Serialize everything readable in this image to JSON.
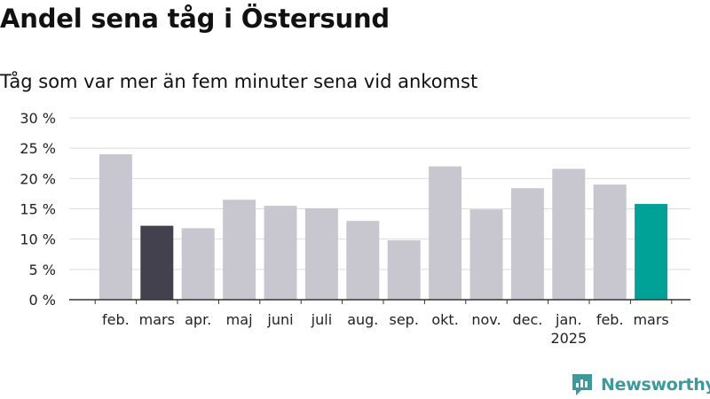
{
  "title": "Andel sena tåg i Östersund",
  "subtitle": "Tåg som var mer än fem minuter sena vid ankomst",
  "brand": "Newsworthy",
  "colors": {
    "default_bar": "#c8c7d0",
    "highlight_prev_bar": "#42414d",
    "highlight_current_bar": "#00a196",
    "grid": "#dddddd",
    "axis": "#333333",
    "brand": "#3b9b9c"
  },
  "chart_data": {
    "type": "bar",
    "categories": [
      "feb.",
      "mars",
      "apr.",
      "maj",
      "juni",
      "juli",
      "aug.",
      "sep.",
      "okt.",
      "nov.",
      "dec.",
      "jan. 2025",
      "feb.",
      "mars"
    ],
    "values": [
      24.0,
      12.2,
      11.8,
      16.5,
      15.5,
      15.1,
      13.0,
      9.8,
      22.0,
      14.9,
      18.4,
      21.6,
      19.0,
      15.8
    ],
    "bar_colors": [
      "default",
      "prev",
      "default",
      "default",
      "default",
      "default",
      "default",
      "default",
      "default",
      "default",
      "default",
      "default",
      "default",
      "current"
    ],
    "y_ticks": [
      0,
      5,
      10,
      15,
      20,
      25,
      30
    ],
    "y_tick_labels": [
      "0 %",
      "5 %",
      "10 %",
      "15 %",
      "20 %",
      "25 %",
      "30 %"
    ],
    "ylim": [
      0,
      30
    ],
    "grid": true,
    "xlabel": "",
    "ylabel": ""
  }
}
